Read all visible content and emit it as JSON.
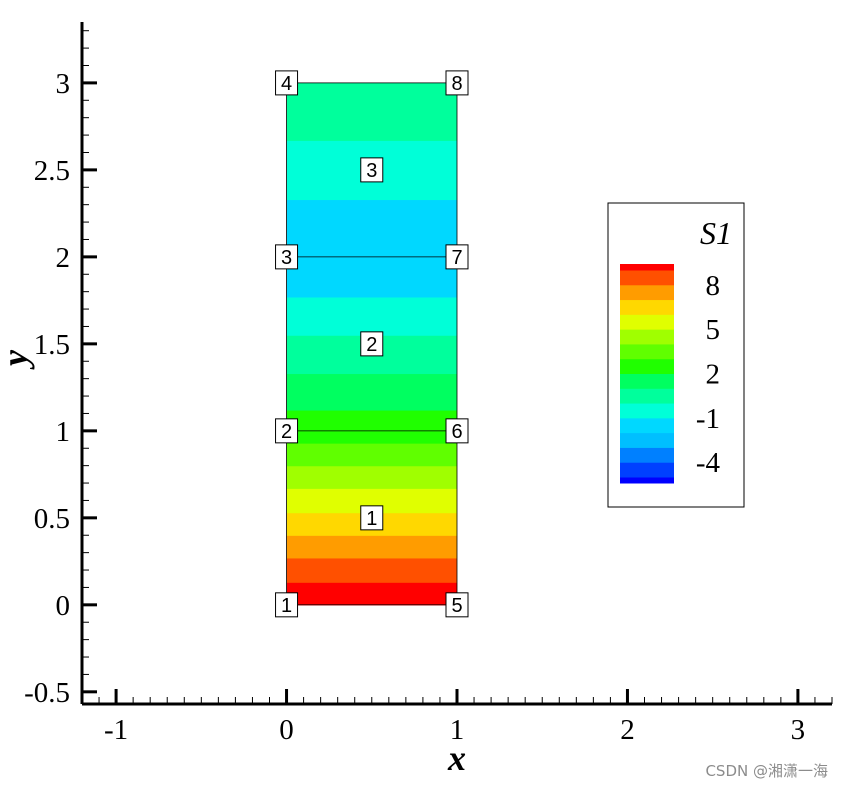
{
  "chart_data": {
    "type": "heatmap",
    "xlabel": "x",
    "ylabel": "y",
    "xlim": [
      -1.2,
      3.2
    ],
    "ylim": [
      -0.57,
      3.35
    ],
    "x_ticks": [
      -1,
      0,
      1,
      2,
      3
    ],
    "x_tick_labels": [
      "-1",
      "0",
      "1",
      "2",
      "3"
    ],
    "x_minor_step": 0.1,
    "y_ticks": [
      -0.5,
      0,
      0.5,
      1,
      1.5,
      2,
      2.5,
      3
    ],
    "y_tick_labels": [
      "-0.5",
      "0",
      "0.5",
      "1",
      "1.5",
      "2",
      "2.5",
      "3"
    ],
    "y_minor_step": 0.1,
    "variable": "S1",
    "contour_levels": [
      -5,
      -4,
      -3,
      -2,
      -1,
      0,
      1,
      2,
      3,
      4,
      5,
      6,
      7,
      8,
      9
    ],
    "level_colors": [
      "#0000ff",
      "#0040ff",
      "#0080ff",
      "#00bfff",
      "#00d8ff",
      "#00ffd8",
      "#00ff9c",
      "#00ff60",
      "#20ff00",
      "#60ff00",
      "#a0ff00",
      "#e0ff00",
      "#ffd800",
      "#ff9c00",
      "#ff5000",
      "#ff0000"
    ],
    "bands": [
      {
        "y0": 0.0,
        "y1": 0.13,
        "color": "#ff0000"
      },
      {
        "y0": 0.13,
        "y1": 0.27,
        "color": "#ff5000"
      },
      {
        "y0": 0.27,
        "y1": 0.4,
        "color": "#ff9c00"
      },
      {
        "y0": 0.4,
        "y1": 0.53,
        "color": "#ffd800"
      },
      {
        "y0": 0.53,
        "y1": 0.67,
        "color": "#e0ff00"
      },
      {
        "y0": 0.67,
        "y1": 0.8,
        "color": "#a0ff00"
      },
      {
        "y0": 0.8,
        "y1": 0.93,
        "color": "#60ff00"
      },
      {
        "y0": 0.93,
        "y1": 1.12,
        "color": "#20ff00"
      },
      {
        "y0": 1.12,
        "y1": 1.33,
        "color": "#00ff60"
      },
      {
        "y0": 1.33,
        "y1": 1.55,
        "color": "#00ff9c"
      },
      {
        "y0": 1.55,
        "y1": 1.77,
        "color": "#00ffd8"
      },
      {
        "y0": 1.77,
        "y1": 2.33,
        "color": "#00d8ff"
      },
      {
        "y0": 2.33,
        "y1": 2.67,
        "color": "#00ffd8"
      },
      {
        "y0": 2.67,
        "y1": 3.0,
        "color": "#00ff9c"
      }
    ],
    "domain": {
      "x0": 0,
      "x1": 1,
      "y0": 0,
      "y1": 3
    },
    "element_boundaries": [
      1,
      2
    ],
    "nodes": [
      {
        "label": "1",
        "x": 0,
        "y": 0
      },
      {
        "label": "2",
        "x": 0,
        "y": 1
      },
      {
        "label": "3",
        "x": 0,
        "y": 2
      },
      {
        "label": "4",
        "x": 0,
        "y": 3
      },
      {
        "label": "5",
        "x": 1,
        "y": 0
      },
      {
        "label": "6",
        "x": 1,
        "y": 1
      },
      {
        "label": "7",
        "x": 1,
        "y": 2
      },
      {
        "label": "8",
        "x": 1,
        "y": 3
      }
    ],
    "elements": [
      {
        "label": "1",
        "x": 0.5,
        "y": 0.5
      },
      {
        "label": "2",
        "x": 0.5,
        "y": 1.5
      },
      {
        "label": "3",
        "x": 0.5,
        "y": 2.5
      }
    ],
    "legend": {
      "title": "S1",
      "placement": "right",
      "labels": [
        {
          "text": "8",
          "value": 8
        },
        {
          "text": "5",
          "value": 5
        },
        {
          "text": "2",
          "value": 2
        },
        {
          "text": "-1",
          "value": -1
        },
        {
          "text": "-4",
          "value": -4
        }
      ]
    }
  },
  "watermark": "CSDN @湘潇一海"
}
